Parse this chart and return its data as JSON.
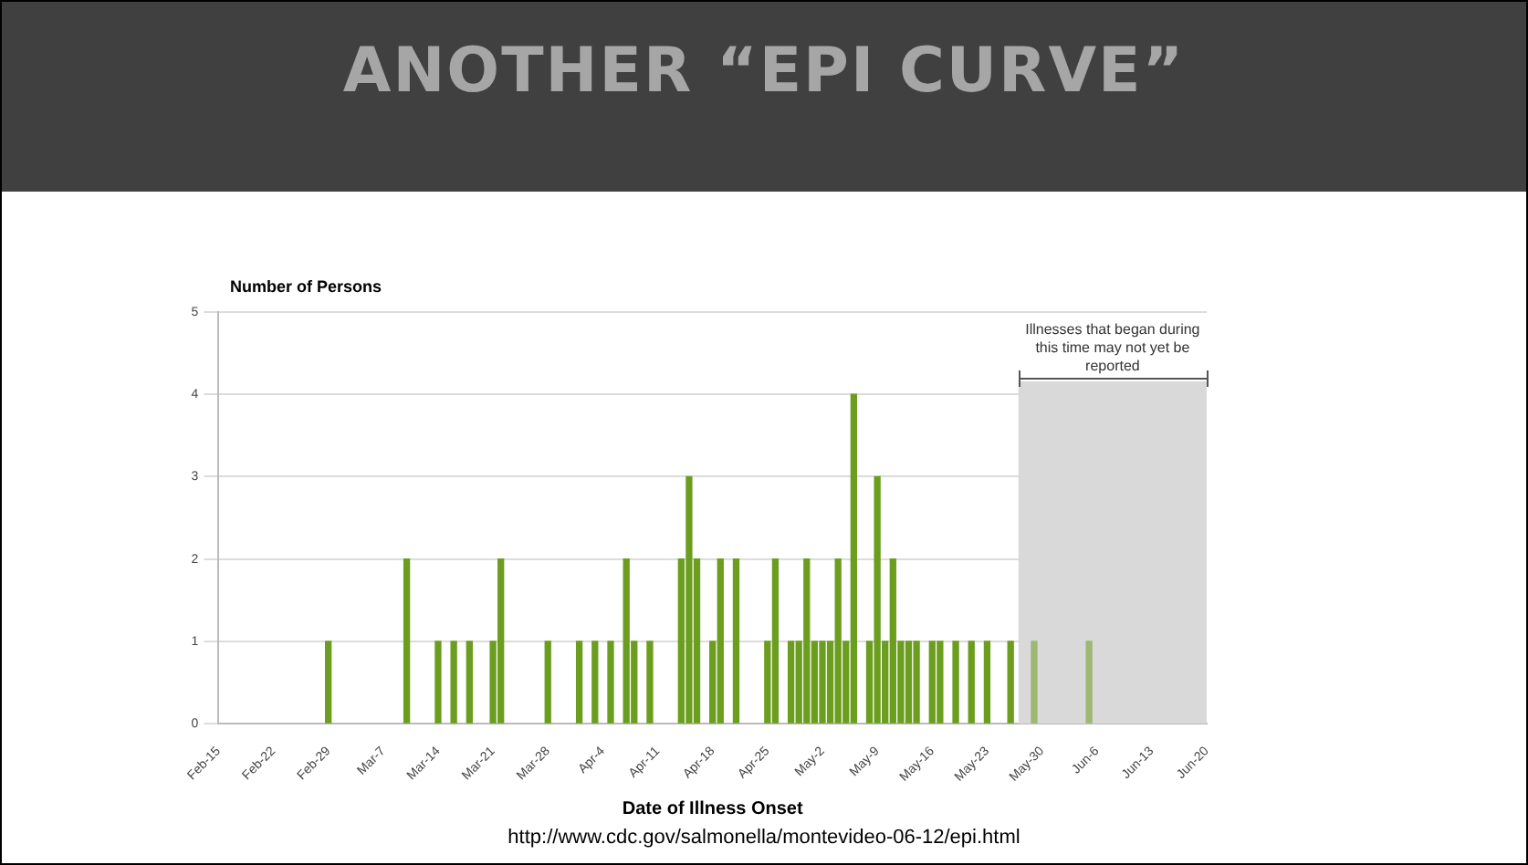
{
  "chart_data": {
    "type": "bar",
    "title": "ANOTHER “EPI CURVE”",
    "xlabel": "Date of Illness Onset",
    "ylabel": "Number of Persons",
    "x": [
      "--02-29",
      "--03-10",
      "--03-14",
      "--03-16",
      "--03-18",
      "--03-21",
      "--03-22",
      "--03-28",
      "--04-01",
      "--04-03",
      "--04-05",
      "--04-07",
      "--04-08",
      "--04-10",
      "--04-14",
      "--04-15",
      "--04-16",
      "--04-18",
      "--04-19",
      "--04-21",
      "--04-25",
      "--04-26",
      "--04-28",
      "--04-29",
      "--04-30",
      "--05-01",
      "--05-02",
      "--05-03",
      "--05-04",
      "--05-05",
      "--05-06",
      "--05-08",
      "--05-09",
      "--05-10",
      "--05-11",
      "--05-12",
      "--05-13",
      "--05-14",
      "--05-16",
      "--05-17",
      "--05-19",
      "--05-21",
      "--05-23",
      "--05-26",
      "--05-29",
      "--06-05"
    ],
    "values": [
      1,
      2,
      1,
      1,
      1,
      1,
      2,
      1,
      1,
      1,
      1,
      2,
      1,
      1,
      2,
      3,
      2,
      1,
      2,
      2,
      1,
      2,
      1,
      1,
      2,
      1,
      1,
      1,
      2,
      1,
      4,
      1,
      3,
      1,
      2,
      1,
      1,
      1,
      1,
      1,
      1,
      1,
      1,
      1,
      1,
      1
    ],
    "colors": [
      "#6b9e1f",
      "#6b9e1f",
      "#6b9e1f",
      "#6b9e1f",
      "#6b9e1f",
      "#6b9e1f",
      "#6b9e1f",
      "#6b9e1f",
      "#6b9e1f",
      "#6b9e1f",
      "#6b9e1f",
      "#6b9e1f",
      "#6b9e1f",
      "#6b9e1f",
      "#6b9e1f",
      "#6b9e1f",
      "#6b9e1f",
      "#6b9e1f",
      "#6b9e1f",
      "#6b9e1f",
      "#6b9e1f",
      "#6b9e1f",
      "#6b9e1f",
      "#6b9e1f",
      "#6b9e1f",
      "#6b9e1f",
      "#6b9e1f",
      "#6b9e1f",
      "#6b9e1f",
      "#6b9e1f",
      "#6b9e1f",
      "#6b9e1f",
      "#6b9e1f",
      "#6b9e1f",
      "#6b9e1f",
      "#6b9e1f",
      "#6b9e1f",
      "#6b9e1f",
      "#6b9e1f",
      "#6b9e1f",
      "#6b9e1f",
      "#6b9e1f",
      "#6b9e1f",
      "#6b9e1f",
      "#9db873",
      "#9db873"
    ],
    "xlim": [
      "--02-15",
      "--06-20"
    ],
    "xticks": [
      {
        "value": "--02-15",
        "label": "Feb-15"
      },
      {
        "value": "--02-22",
        "label": "Feb-22"
      },
      {
        "value": "--02-29",
        "label": "Feb-29"
      },
      {
        "value": "--03-07",
        "label": "Mar-7"
      },
      {
        "value": "--03-14",
        "label": "Mar-14"
      },
      {
        "value": "--03-21",
        "label": "Mar-21"
      },
      {
        "value": "--03-28",
        "label": "Mar-28"
      },
      {
        "value": "--04-04",
        "label": "Apr-4"
      },
      {
        "value": "--04-11",
        "label": "Apr-11"
      },
      {
        "value": "--04-18",
        "label": "Apr-18"
      },
      {
        "value": "--04-25",
        "label": "Apr-25"
      },
      {
        "value": "--05-02",
        "label": "May-2"
      },
      {
        "value": "--05-09",
        "label": "May-9"
      },
      {
        "value": "--05-16",
        "label": "May-16"
      },
      {
        "value": "--05-23",
        "label": "May-23"
      },
      {
        "value": "--05-30",
        "label": "May-30"
      },
      {
        "value": "--06-06",
        "label": "Jun-6"
      },
      {
        "value": "--06-13",
        "label": "Jun-13"
      },
      {
        "value": "--06-20",
        "label": "Jun-20"
      }
    ],
    "ylim": [
      0,
      5
    ],
    "yticks": [
      0,
      1,
      2,
      3,
      4,
      5
    ],
    "grid": "y",
    "legend": false,
    "bands": [
      {
        "axis": "x",
        "from": "--05-27",
        "to": "--06-20",
        "label": "Illnesses that began during this time may not yet be reported",
        "color": "#d9d9d9"
      }
    ],
    "annotations": [
      "http://www.cdc.gov/salmonella/montevideo-06-12/epi.html"
    ]
  }
}
